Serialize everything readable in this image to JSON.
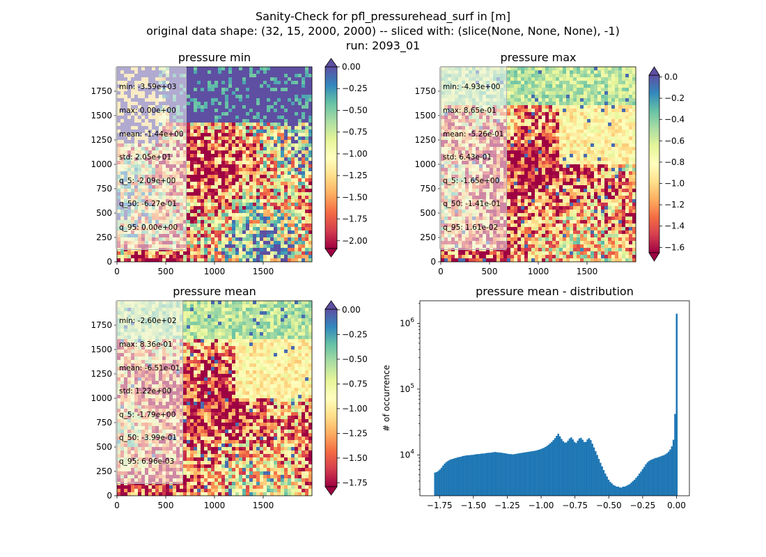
{
  "figure": {
    "title_lines": [
      "Sanity-Check for pfl_pressurehead_surf in [m]",
      "original data shape: (32, 15, 2000, 2000) -- sliced with: (slice(None, None, None), -1)",
      "run: 2093_01"
    ]
  },
  "colormap": {
    "name": "Spectral",
    "stops": [
      "#9e0142",
      "#d53e4f",
      "#f46d43",
      "#fdae61",
      "#fee08b",
      "#ffffbf",
      "#e6f598",
      "#abdda4",
      "#66c2a5",
      "#3288bd",
      "#5e4fa2"
    ]
  },
  "chart_data": [
    {
      "type": "heatmap",
      "title": "pressure min",
      "xlim": [
        0,
        2000
      ],
      "ylim": [
        0,
        2000
      ],
      "xticks": [
        "0",
        "500",
        "1000",
        "1500"
      ],
      "yticks": [
        "0",
        "250",
        "500",
        "750",
        "1000",
        "1250",
        "1500",
        "1750"
      ],
      "colorbar": {
        "vmin": -2.09,
        "vmax": 0.0,
        "ticks": [
          "0.00",
          "−0.25",
          "−0.50",
          "−0.75",
          "−1.00",
          "−1.25",
          "−1.50",
          "−1.75",
          "−2.00"
        ],
        "tick_values": [
          0,
          -0.25,
          -0.5,
          -0.75,
          -1.0,
          -1.25,
          -1.5,
          -1.75,
          -2.0
        ],
        "extend": "both"
      },
      "stats": [
        "min: -3.59e+03",
        "max: 0.00e+00",
        "mean: -1.44e+00",
        "std: 2.05e+01",
        "q_5: -2.09e+00",
        "q_50: -6.27e-01",
        "q_95: 0.00e+00"
      ]
    },
    {
      "type": "heatmap",
      "title": "pressure max",
      "xlim": [
        0,
        2000
      ],
      "ylim": [
        0,
        2000
      ],
      "xticks": [
        "0",
        "500",
        "1000",
        "1500"
      ],
      "yticks": [
        "0",
        "250",
        "500",
        "750",
        "1000",
        "1250",
        "1500",
        "1750"
      ],
      "colorbar": {
        "vmin": -1.65,
        "vmax": 0.0161,
        "ticks": [
          "0.0",
          "−0.2",
          "−0.4",
          "−0.6",
          "−0.8",
          "−1.0",
          "−1.2",
          "−1.4",
          "−1.6"
        ],
        "tick_values": [
          0,
          -0.2,
          -0.4,
          -0.6,
          -0.8,
          -1.0,
          -1.2,
          -1.4,
          -1.6
        ],
        "extend": "both"
      },
      "stats": [
        "min: -4.93e+00",
        "max: 8.65e-01",
        "mean: -5.26e-01",
        "std: 6.43e-01",
        "q_5: -1.65e+00",
        "q_50: -1.41e-01",
        "q_95: 1.61e-02"
      ]
    },
    {
      "type": "heatmap",
      "title": "pressure mean",
      "xlim": [
        0,
        2000
      ],
      "ylim": [
        0,
        2000
      ],
      "xticks": [
        "0",
        "500",
        "1000",
        "1500"
      ],
      "yticks": [
        "0",
        "250",
        "500",
        "750",
        "1000",
        "1250",
        "1500",
        "1750"
      ],
      "colorbar": {
        "vmin": -1.79,
        "vmax": 0.00696,
        "ticks": [
          "0.00",
          "−0.25",
          "−0.50",
          "−0.75",
          "−1.00",
          "−1.25",
          "−1.50",
          "−1.75"
        ],
        "tick_values": [
          0,
          -0.25,
          -0.5,
          -0.75,
          -1.0,
          -1.25,
          -1.5,
          -1.75
        ],
        "extend": "both"
      },
      "stats": [
        "min: -2.60e+02",
        "max: 8.36e-01",
        "mean: -6.51e-01",
        "std: 1.22e+00",
        "q_5: -1.79e+00",
        "q_50: -3.99e-01",
        "q_95: 6.96e-03"
      ]
    },
    {
      "type": "bar",
      "title": "pressure mean - distribution",
      "xlabel": "",
      "ylabel": "# of occurrence",
      "y_scale": "log",
      "xlim": [
        -1.895,
        0.095
      ],
      "ylim": [
        2400,
        2200000
      ],
      "xticks": [
        -1.75,
        -1.5,
        -1.25,
        -1.0,
        -0.75,
        -0.5,
        -0.25,
        0.0
      ],
      "xtick_labels": [
        "−1.75",
        "−1.50",
        "−1.25",
        "−1.00",
        "−0.75",
        "−0.50",
        "−0.25",
        "0.00"
      ],
      "ytick_values": [
        10000,
        100000,
        1000000
      ],
      "ytick_labels": [
        "10^4",
        "10^5",
        "10^6"
      ],
      "bin_range": [
        -1.79,
        0.0069
      ],
      "color": "#1f77b4",
      "counts": [
        5400,
        5500,
        5700,
        6000,
        6400,
        6900,
        7400,
        7800,
        8100,
        8400,
        8600,
        8700,
        8900,
        9000,
        9200,
        9300,
        9400,
        9600,
        9700,
        9800,
        9900,
        9900,
        10000,
        10000,
        10100,
        10200,
        10300,
        10300,
        10400,
        10500,
        10500,
        10600,
        10700,
        10800,
        10800,
        10900,
        11000,
        11100,
        11000,
        10900,
        10900,
        10800,
        10700,
        10600,
        10500,
        10400,
        10300,
        10300,
        10200,
        10300,
        10400,
        10500,
        10600,
        10700,
        10800,
        10900,
        11000,
        11100,
        11200,
        11300,
        11400,
        11500,
        11600,
        11800,
        12000,
        12200,
        12500,
        12800,
        13200,
        13700,
        14300,
        15000,
        15800,
        16800,
        18000,
        19500,
        21000,
        19200,
        17500,
        16200,
        15400,
        15500,
        16500,
        17800,
        18500,
        17200,
        15800,
        15200,
        16500,
        17800,
        18200,
        17000,
        15700,
        15800,
        17200,
        18000,
        16800,
        14800,
        13000,
        11400,
        10000,
        8700,
        7600,
        6700,
        5900,
        5200,
        4700,
        4200,
        3900,
        3700,
        3500,
        3400,
        3300,
        3300,
        3200,
        3200,
        3300,
        3300,
        3400,
        3500,
        3600,
        3800,
        4000,
        4200,
        4500,
        4800,
        5200,
        5600,
        6100,
        6600,
        7200,
        7700,
        8100,
        8400,
        8600,
        8800,
        9000,
        9100,
        9300,
        9500,
        9700,
        9900,
        10200,
        10600,
        11200,
        12100,
        13500,
        17000,
        42000,
        1400000
      ]
    }
  ]
}
